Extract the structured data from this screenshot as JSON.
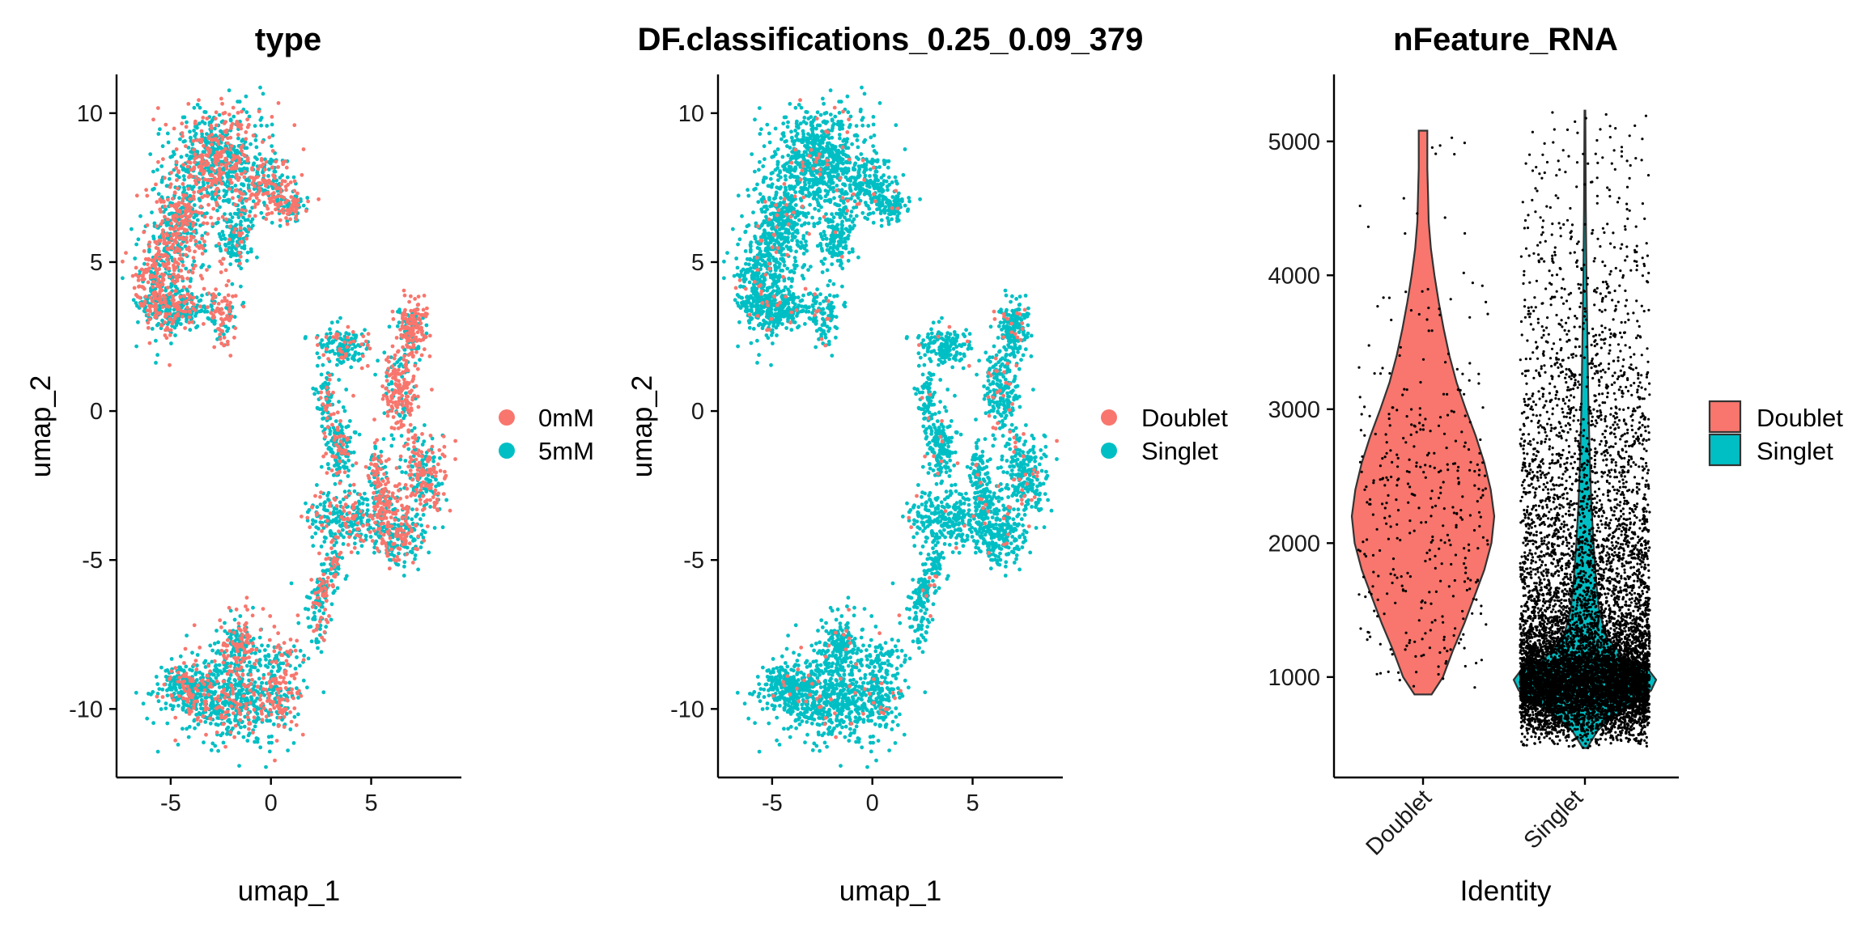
{
  "colors": {
    "red": "#F8766D",
    "teal": "#00BFC4",
    "outline": "#333333"
  },
  "chart_data": [
    {
      "type": "scatter",
      "title": "type",
      "xlabel": "umap_1",
      "ylabel": "umap_2",
      "xlim": [
        -7.7,
        9.5
      ],
      "ylim": [
        -12.3,
        11.3
      ],
      "xticks": [
        -5,
        0,
        5
      ],
      "yticks": [
        -10,
        -5,
        0,
        5,
        10
      ],
      "legend": {
        "position": "right",
        "entries": [
          "0mM",
          "5mM"
        ]
      },
      "red_fraction": 0.35
    },
    {
      "type": "scatter",
      "title": "DF.classifications_0.25_0.09_379",
      "xlabel": "umap_1",
      "ylabel": "umap_2",
      "xlim": [
        -7.7,
        9.5
      ],
      "ylim": [
        -12.3,
        11.3
      ],
      "xticks": [
        -5,
        0,
        5
      ],
      "yticks": [
        -10,
        -5,
        0,
        5,
        10
      ],
      "legend": {
        "position": "right",
        "entries": [
          "Doublet",
          "Singlet"
        ]
      },
      "red_fraction": 0.04
    },
    {
      "type": "violin",
      "title": "nFeature_RNA",
      "xlabel": "Identity",
      "ylabel": "",
      "categories": [
        "Doublet",
        "Singlet"
      ],
      "ylim": [
        250,
        5500
      ],
      "yticks": [
        1000,
        2000,
        3000,
        4000,
        5000
      ],
      "legend": {
        "position": "right",
        "entries": [
          "Doublet",
          "Singlet"
        ]
      },
      "series": [
        {
          "name": "Doublet",
          "min": 870,
          "max": 5080,
          "mode": 2200,
          "n_points": 380,
          "density": [
            [
              870,
              0.12
            ],
            [
              1000,
              0.28
            ],
            [
              1200,
              0.42
            ],
            [
              1400,
              0.58
            ],
            [
              1600,
              0.72
            ],
            [
              1800,
              0.86
            ],
            [
              2000,
              0.96
            ],
            [
              2200,
              1.0
            ],
            [
              2400,
              0.95
            ],
            [
              2600,
              0.86
            ],
            [
              2800,
              0.74
            ],
            [
              3000,
              0.6
            ],
            [
              3200,
              0.47
            ],
            [
              3400,
              0.37
            ],
            [
              3600,
              0.29
            ],
            [
              3800,
              0.22
            ],
            [
              4000,
              0.16
            ],
            [
              4200,
              0.11
            ],
            [
              4400,
              0.08
            ],
            [
              4600,
              0.07
            ],
            [
              4800,
              0.06
            ],
            [
              5080,
              0.06
            ]
          ]
        },
        {
          "name": "Singlet",
          "min": 470,
          "max": 5230,
          "mode": 980,
          "n_points": 9000,
          "density": [
            [
              470,
              0.03
            ],
            [
              600,
              0.18
            ],
            [
              700,
              0.38
            ],
            [
              800,
              0.7
            ],
            [
              900,
              0.93
            ],
            [
              980,
              1.0
            ],
            [
              1050,
              0.9
            ],
            [
              1150,
              0.55
            ],
            [
              1300,
              0.3
            ],
            [
              1500,
              0.2
            ],
            [
              1700,
              0.16
            ],
            [
              2000,
              0.12
            ],
            [
              2300,
              0.09
            ],
            [
              2600,
              0.07
            ],
            [
              3000,
              0.05
            ],
            [
              3500,
              0.035
            ],
            [
              4000,
              0.022
            ],
            [
              4500,
              0.012
            ],
            [
              5000,
              0.008
            ],
            [
              5230,
              0.006
            ]
          ]
        }
      ]
    }
  ]
}
